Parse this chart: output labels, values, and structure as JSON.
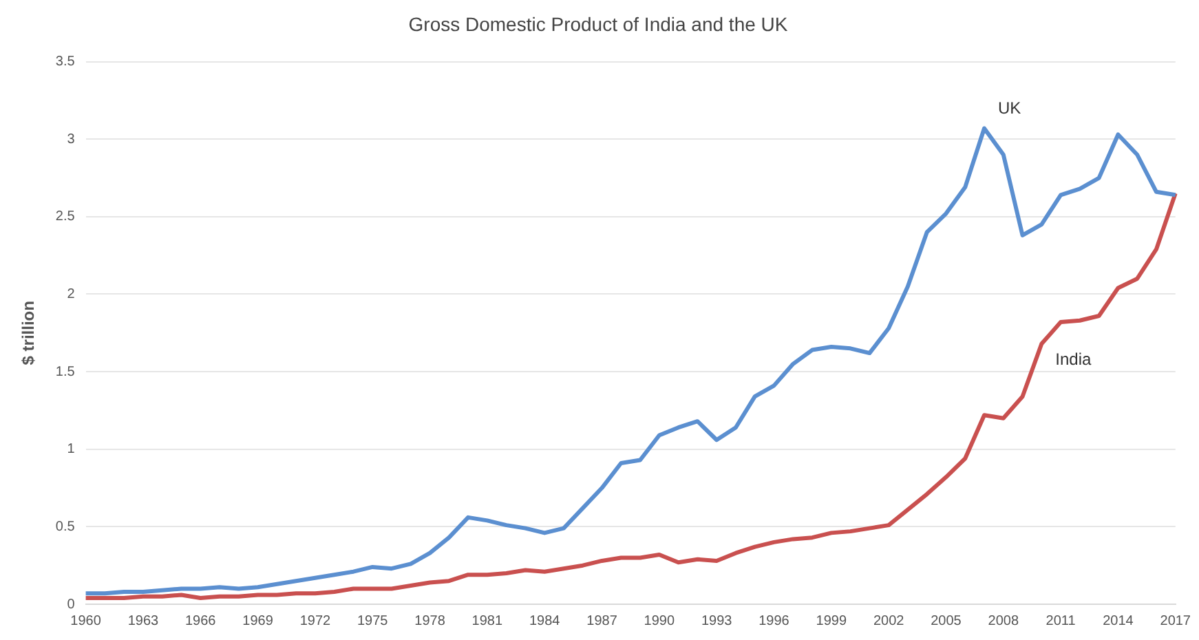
{
  "chart_data": {
    "type": "line",
    "title": "Gross Domestic Product of India and the UK",
    "ylabel": "$ trillion",
    "categories": [
      "1960",
      null,
      null,
      "1963",
      null,
      null,
      "1966",
      null,
      null,
      "1969",
      null,
      null,
      "1972",
      null,
      null,
      "1975",
      null,
      null,
      "1978",
      null,
      null,
      "1981",
      null,
      null,
      "1984",
      null,
      null,
      "1987",
      null,
      null,
      "1990",
      null,
      null,
      "1993",
      null,
      null,
      "1996",
      null,
      null,
      "1999",
      null,
      null,
      "2002",
      null,
      null,
      "2005",
      null,
      null,
      "2008",
      null,
      null,
      "2011",
      null,
      null,
      "2014",
      null,
      null,
      "2017"
    ],
    "series": [
      {
        "name": "UK",
        "color": "#5b8fd0",
        "values": [
          0.07,
          0.07,
          0.08,
          0.08,
          0.09,
          0.1,
          0.1,
          0.11,
          0.1,
          0.11,
          0.13,
          0.15,
          0.17,
          0.19,
          0.21,
          0.24,
          0.23,
          0.26,
          0.33,
          0.43,
          0.56,
          0.54,
          0.51,
          0.49,
          0.46,
          0.49,
          0.62,
          0.75,
          0.91,
          0.93,
          1.09,
          1.14,
          1.18,
          1.06,
          1.14,
          1.34,
          1.41,
          1.55,
          1.64,
          1.66,
          1.65,
          1.62,
          1.78,
          2.05,
          2.4,
          2.52,
          2.69,
          3.07,
          2.9,
          2.38,
          2.45,
          2.64,
          2.68,
          2.75,
          3.03,
          2.9,
          2.66,
          2.64
        ]
      },
      {
        "name": "India",
        "color": "#c9504f",
        "values": [
          0.04,
          0.04,
          0.04,
          0.05,
          0.05,
          0.06,
          0.04,
          0.05,
          0.05,
          0.06,
          0.06,
          0.07,
          0.07,
          0.08,
          0.1,
          0.1,
          0.1,
          0.12,
          0.14,
          0.15,
          0.19,
          0.19,
          0.2,
          0.22,
          0.21,
          0.23,
          0.25,
          0.28,
          0.3,
          0.3,
          0.32,
          0.27,
          0.29,
          0.28,
          0.33,
          0.37,
          0.4,
          0.42,
          0.43,
          0.46,
          0.47,
          0.49,
          0.51,
          0.61,
          0.71,
          0.82,
          0.94,
          1.22,
          1.2,
          1.34,
          1.68,
          1.82,
          1.83,
          1.86,
          2.04,
          2.1,
          2.29,
          2.65
        ]
      }
    ],
    "ylim": [
      0,
      3.5
    ],
    "yticks": [
      0,
      0.5,
      1,
      1.5,
      2,
      2.5,
      3,
      3.5
    ],
    "grid": "y",
    "legend": false,
    "marker": "none",
    "line_style": "solid"
  }
}
